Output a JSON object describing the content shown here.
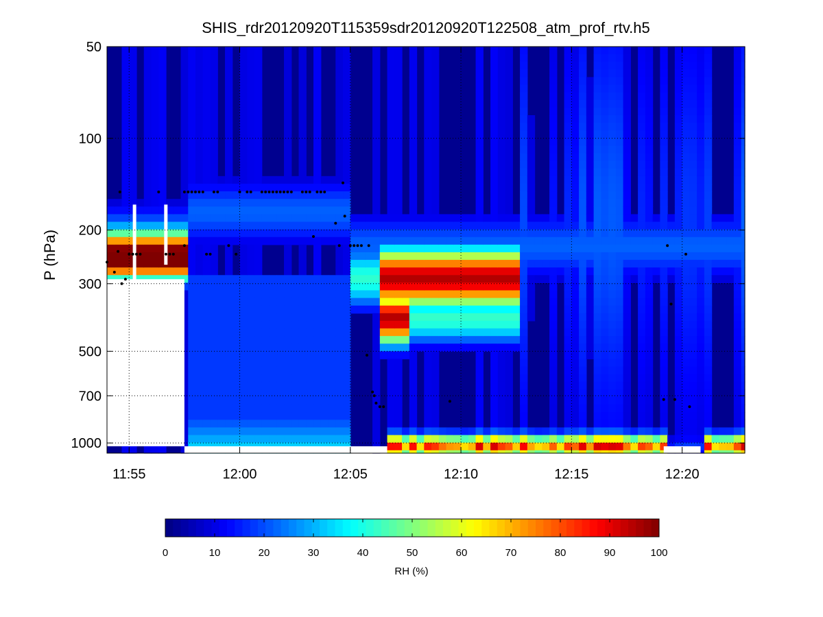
{
  "chart_data": {
    "type": "heatmap",
    "title": "SHIS_rdr20120920T115359sdr20120920T122508_atm_prof_rtv.h5",
    "xlabel": "",
    "ylabel": "P (hPa)",
    "x_scale": "time",
    "x_range": [
      "11:54:00",
      "12:22:50"
    ],
    "x_ticks": [
      "11:55",
      "12:00",
      "12:05",
      "12:10",
      "12:15",
      "12:20"
    ],
    "y_scale": "log",
    "y_reversed": true,
    "y_range": [
      50,
      1080
    ],
    "y_ticks": [
      50,
      100,
      200,
      300,
      500,
      700,
      1000
    ],
    "grid": "dotted",
    "colormap": "jet",
    "colorbar": {
      "label": "RH (%)",
      "range": [
        0,
        100
      ],
      "ticks": [
        0,
        10,
        20,
        30,
        40,
        50,
        60,
        70,
        80,
        90,
        100
      ],
      "placement": "bottom"
    },
    "series": [
      {
        "kind": "rh_field",
        "description_units": "RH (%)",
        "values": "sampled in script",
        "regions": [
          {
            "time_start": "11:54:00",
            "time_end": "11:57:30",
            "p_top": 185,
            "p_bottom": 260,
            "rh": 85
          },
          {
            "time_start": "12:06:10",
            "time_end": "12:12:30",
            "p_top": 240,
            "p_bottom": 450,
            "rh": 85
          },
          {
            "time_start": "12:06:40",
            "time_end": "12:19:10",
            "p_top": 870,
            "p_bottom": 1080,
            "rh": 85
          },
          {
            "time_start": "12:20:50",
            "time_end": "12:22:50",
            "p_top": 900,
            "p_bottom": 1080,
            "rh": 75
          }
        ]
      },
      {
        "kind": "markers",
        "name": "",
        "points": [
          {
            "t": "11:54:00",
            "p": 255
          },
          {
            "t": "11:54:20",
            "p": 275
          },
          {
            "t": "11:54:30",
            "p": 235
          },
          {
            "t": "11:54:35",
            "p": 150
          },
          {
            "t": "11:54:40",
            "p": 300
          },
          {
            "t": "11:54:50",
            "p": 290
          },
          {
            "t": "11:55:00",
            "p": 240
          },
          {
            "t": "11:55:10",
            "p": 240
          },
          {
            "t": "11:55:20",
            "p": 240
          },
          {
            "t": "11:55:30",
            "p": 240
          },
          {
            "t": "11:56:20",
            "p": 150
          },
          {
            "t": "11:56:40",
            "p": 240
          },
          {
            "t": "11:56:50",
            "p": 240
          },
          {
            "t": "11:57:00",
            "p": 240
          },
          {
            "t": "11:57:30",
            "p": 225
          },
          {
            "t": "11:57:30",
            "p": 150
          },
          {
            "t": "11:57:40",
            "p": 150
          },
          {
            "t": "11:57:50",
            "p": 150
          },
          {
            "t": "11:58:00",
            "p": 150
          },
          {
            "t": "11:58:10",
            "p": 150
          },
          {
            "t": "11:58:20",
            "p": 150
          },
          {
            "t": "11:58:30",
            "p": 240
          },
          {
            "t": "11:58:40",
            "p": 240
          },
          {
            "t": "11:58:50",
            "p": 150
          },
          {
            "t": "11:59:00",
            "p": 150
          },
          {
            "t": "11:59:30",
            "p": 225
          },
          {
            "t": "11:59:50",
            "p": 240
          },
          {
            "t": "12:00:00",
            "p": 150
          },
          {
            "t": "12:00:20",
            "p": 150
          },
          {
            "t": "12:00:30",
            "p": 150
          },
          {
            "t": "12:01:00",
            "p": 150
          },
          {
            "t": "12:01:10",
            "p": 150
          },
          {
            "t": "12:01:20",
            "p": 150
          },
          {
            "t": "12:01:30",
            "p": 150
          },
          {
            "t": "12:01:40",
            "p": 150
          },
          {
            "t": "12:01:50",
            "p": 150
          },
          {
            "t": "12:02:00",
            "p": 150
          },
          {
            "t": "12:02:10",
            "p": 150
          },
          {
            "t": "12:02:20",
            "p": 150
          },
          {
            "t": "12:02:50",
            "p": 150
          },
          {
            "t": "12:03:00",
            "p": 150
          },
          {
            "t": "12:03:10",
            "p": 150
          },
          {
            "t": "12:03:20",
            "p": 210
          },
          {
            "t": "12:03:30",
            "p": 150
          },
          {
            "t": "12:03:40",
            "p": 150
          },
          {
            "t": "12:03:50",
            "p": 150
          },
          {
            "t": "12:04:20",
            "p": 190
          },
          {
            "t": "12:04:30",
            "p": 225
          },
          {
            "t": "12:04:40",
            "p": 140
          },
          {
            "t": "12:04:45",
            "p": 180
          },
          {
            "t": "12:05:00",
            "p": 225
          },
          {
            "t": "12:05:10",
            "p": 225
          },
          {
            "t": "12:05:20",
            "p": 225
          },
          {
            "t": "12:05:30",
            "p": 225
          },
          {
            "t": "12:05:50",
            "p": 225
          },
          {
            "t": "12:05:45",
            "p": 515
          },
          {
            "t": "12:06:00",
            "p": 680
          },
          {
            "t": "12:06:05",
            "p": 700
          },
          {
            "t": "12:06:10",
            "p": 740
          },
          {
            "t": "12:06:20",
            "p": 760
          },
          {
            "t": "12:06:30",
            "p": 760
          },
          {
            "t": "12:09:30",
            "p": 730
          },
          {
            "t": "12:19:10",
            "p": 720
          },
          {
            "t": "12:19:20",
            "p": 225
          },
          {
            "t": "12:19:30",
            "p": 350
          },
          {
            "t": "12:19:40",
            "p": 720
          },
          {
            "t": "12:20:10",
            "p": 240
          },
          {
            "t": "12:20:20",
            "p": 760
          }
        ]
      }
    ]
  }
}
